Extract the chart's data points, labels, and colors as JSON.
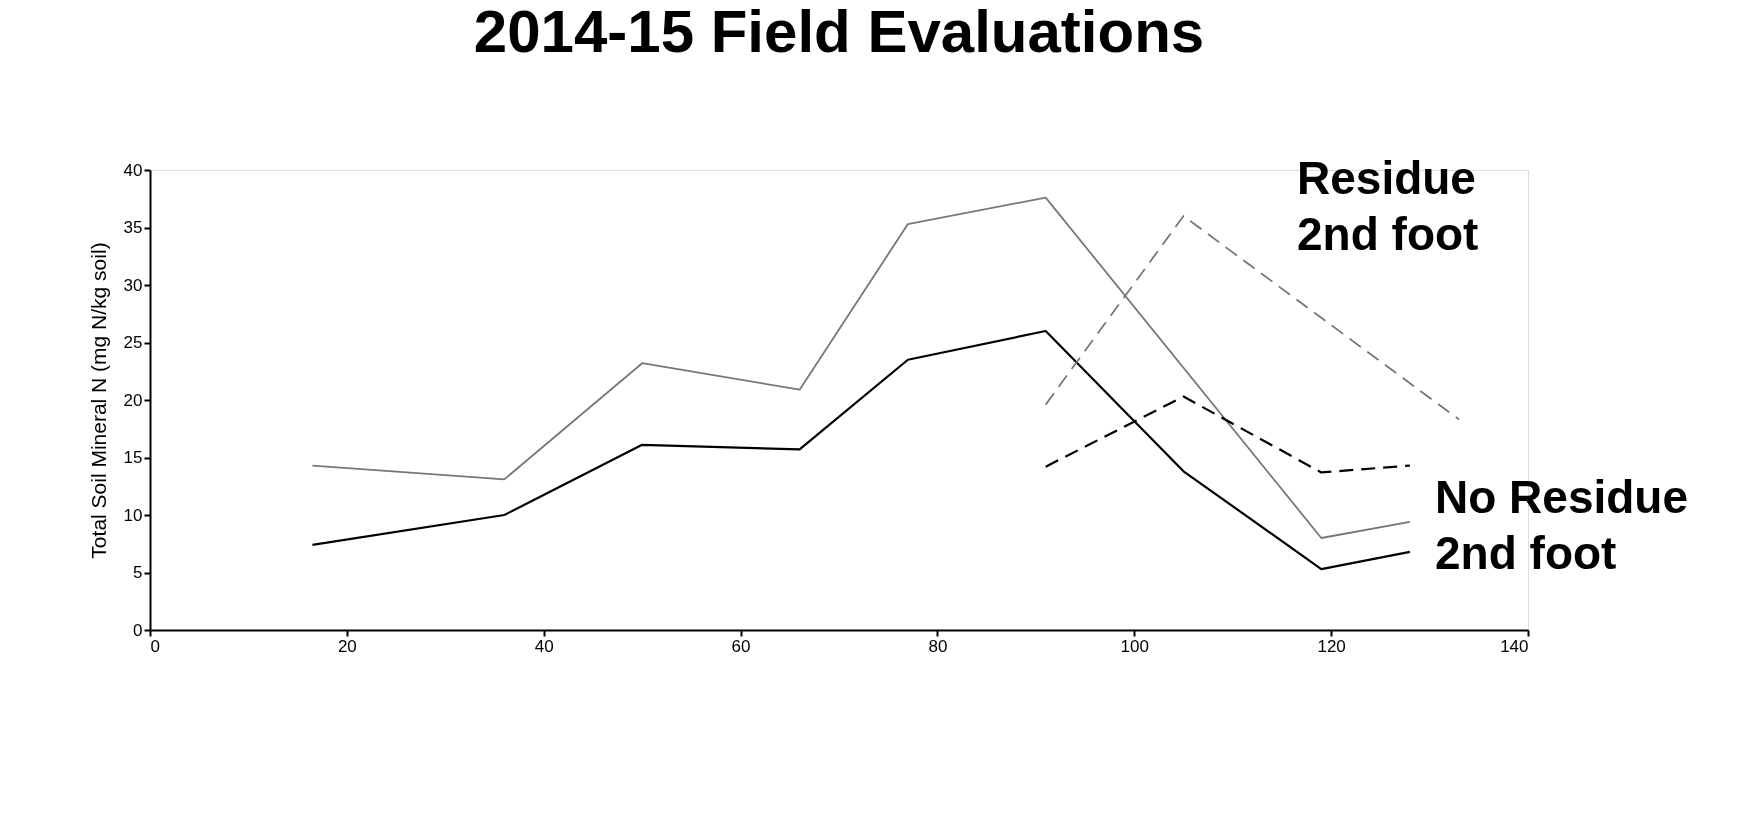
{
  "chart_data": {
    "type": "line",
    "title": "2014-15 Field Evaluations",
    "ylabel": "Total Soil Mineral N (mg N/kg soil)",
    "xlim": [
      0,
      140
    ],
    "xticks": [
      0,
      20,
      40,
      60,
      80,
      100,
      120,
      140
    ],
    "ylim": [
      0,
      40
    ],
    "yticks": [
      0,
      5,
      10,
      15,
      20,
      25,
      30,
      35,
      40
    ],
    "grid": false,
    "marker": "none",
    "series": [
      {
        "color": "#777777",
        "line_style": "solid",
        "x": [
          16.5,
          36,
          50,
          66,
          77,
          91,
          119,
          128
        ],
        "values": [
          14.3,
          13.1,
          23.2,
          20.9,
          35.3,
          37.6,
          8,
          9.4
        ]
      },
      {
        "color": "#000000",
        "line_style": "solid",
        "x": [
          16.5,
          36,
          50,
          66,
          77,
          91,
          105,
          119,
          128
        ],
        "values": [
          7.4,
          10,
          16.1,
          15.7,
          23.5,
          26,
          13.8,
          5.3,
          6.8
        ]
      },
      {
        "color": "#777777",
        "line_style": "dashed",
        "x": [
          91,
          105,
          133
        ],
        "values": [
          19.6,
          36,
          18.3
        ]
      },
      {
        "color": "#000000",
        "line_style": "dashed",
        "x": [
          91,
          105,
          119,
          128
        ],
        "values": [
          14.2,
          20.3,
          13.7,
          14.3
        ]
      }
    ],
    "annotations": [
      "Residue\n2nd foot",
      "No Residue\n2nd foot"
    ]
  }
}
